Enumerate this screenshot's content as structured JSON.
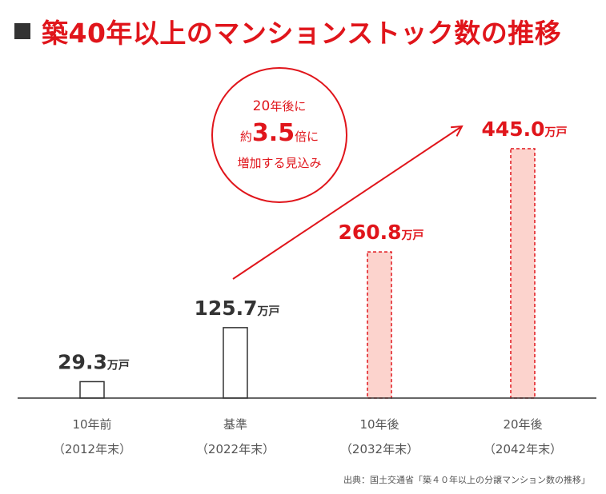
{
  "title": "築40年以上のマンションストック数の推移",
  "callout": {
    "num1": "20",
    "line1": "年後に",
    "pre2": "約",
    "num2": "3.5",
    "post2": "倍に",
    "line3": "増加する見込み"
  },
  "source": "出典：国土交通省「築４０年以上の分譲マンション数の推移」",
  "colors": {
    "accent": "#e0151b",
    "future_fill": "#fcd3cd",
    "past_stroke": "#333333",
    "axis": "#333333"
  },
  "chart_data": {
    "type": "bar",
    "unit": "万戸",
    "categories": [
      {
        "line1": "10年前",
        "line2": "（2012年末）"
      },
      {
        "line1": "基準",
        "line2": "（2022年末）"
      },
      {
        "line1": "10年後",
        "line2": "（2032年末）"
      },
      {
        "line1": "20年後",
        "line2": "（2042年末）"
      }
    ],
    "values": [
      29.3,
      125.7,
      260.8,
      445.0
    ],
    "value_labels": [
      "29.3",
      "125.7",
      "260.8",
      "445.0"
    ],
    "projected": [
      false,
      false,
      true,
      true
    ],
    "arrow": {
      "from_category": 1,
      "to_category": 3,
      "direction": "up-right"
    }
  }
}
